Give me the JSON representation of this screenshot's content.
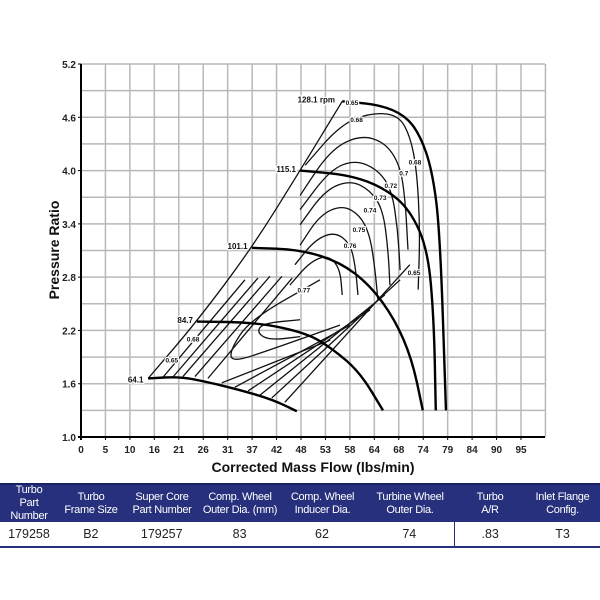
{
  "chart_data": {
    "type": "line",
    "title": "",
    "xlabel": "Corrected Mass Flow (lbs/min)",
    "ylabel": "Pressure Ratio",
    "xlim": [
      0,
      100
    ],
    "ylim": [
      1.0,
      5.2
    ],
    "grid": true,
    "x_tick_labels": [
      "0",
      "5",
      "10",
      "16",
      "21",
      "26",
      "31",
      "37",
      "42",
      "48",
      "53",
      "58",
      "64",
      "68",
      "74",
      "79",
      "84",
      "90",
      "95"
    ],
    "y_tick_labels": [
      "1.0",
      "1.6",
      "2.2",
      "2.8",
      "3.4",
      "4.0",
      "4.6",
      "5.2"
    ],
    "speed_lines": [
      {
        "name": "64.1",
        "points": [
          [
            14.5,
            1.66
          ],
          [
            21.4,
            1.68
          ],
          [
            27.2,
            1.62
          ],
          [
            34.3,
            1.53
          ],
          [
            41.4,
            1.42
          ],
          [
            46.6,
            1.29
          ]
        ]
      },
      {
        "name": "84.7",
        "points": [
          [
            25.0,
            2.3
          ],
          [
            38.0,
            2.29
          ],
          [
            48.8,
            2.17
          ],
          [
            54.4,
            1.99
          ],
          [
            60.2,
            1.73
          ],
          [
            65.2,
            1.3
          ]
        ]
      },
      {
        "name": "101.1",
        "points": [
          [
            36.9,
            3.13
          ],
          [
            47.3,
            3.11
          ],
          [
            55.9,
            2.97
          ],
          [
            62.4,
            2.71
          ],
          [
            67.8,
            2.32
          ],
          [
            71.5,
            1.87
          ],
          [
            73.8,
            1.3
          ]
        ]
      },
      {
        "name": "115.1",
        "points": [
          [
            47.3,
            4.0
          ],
          [
            58.1,
            3.95
          ],
          [
            65.6,
            3.8
          ],
          [
            71.0,
            3.56
          ],
          [
            74.9,
            3.11
          ],
          [
            76.2,
            2.32
          ],
          [
            76.6,
            1.3
          ]
        ]
      },
      {
        "name": "128.1 rpm",
        "points": [
          [
            56.4,
            4.78
          ],
          [
            64.6,
            4.74
          ],
          [
            70.0,
            4.62
          ],
          [
            73.2,
            4.4
          ],
          [
            75.8,
            4.01
          ],
          [
            77.5,
            3.33
          ],
          [
            78.8,
            1.3
          ]
        ]
      }
    ],
    "surge_line": [
      [
        14.5,
        1.66
      ],
      [
        25.0,
        2.3
      ],
      [
        36.9,
        3.13
      ],
      [
        47.3,
        4.0
      ],
      [
        56.4,
        4.78
      ]
    ],
    "efficiency_contours": [
      {
        "value": "0.68",
        "points": [
          [
            48.4,
            4.06
          ],
          [
            55.9,
            4.51
          ],
          [
            62.4,
            4.65
          ],
          [
            68.4,
            4.63
          ],
          [
            71.0,
            4.4
          ],
          [
            72.5,
            4.01
          ],
          [
            73.2,
            3.33
          ],
          [
            72.8,
            2.66
          ]
        ]
      },
      {
        "value": "0.7",
        "points": [
          [
            47.3,
            3.72
          ],
          [
            53.8,
            4.23
          ],
          [
            60.2,
            4.4
          ],
          [
            65.6,
            4.32
          ],
          [
            68.9,
            4.06
          ],
          [
            70.0,
            3.67
          ],
          [
            70.6,
            3.11
          ]
        ]
      },
      {
        "value": "0.72",
        "points": [
          [
            47.3,
            3.56
          ],
          [
            53.8,
            4.01
          ],
          [
            59.2,
            4.12
          ],
          [
            64.1,
            4.01
          ],
          [
            67.1,
            3.78
          ],
          [
            68.4,
            3.33
          ],
          [
            68.9,
            2.88
          ]
        ]
      },
      {
        "value": "0.73",
        "points": [
          [
            47.3,
            3.39
          ],
          [
            52.7,
            3.78
          ],
          [
            58.1,
            3.89
          ],
          [
            62.4,
            3.78
          ],
          [
            65.2,
            3.56
          ],
          [
            66.3,
            3.11
          ],
          [
            66.7,
            2.71
          ]
        ]
      },
      {
        "value": "0.74",
        "points": [
          [
            47.3,
            3.16
          ],
          [
            51.6,
            3.5
          ],
          [
            56.4,
            3.61
          ],
          [
            60.2,
            3.5
          ],
          [
            62.4,
            3.27
          ],
          [
            63.5,
            2.88
          ],
          [
            64.1,
            2.54
          ]
        ]
      },
      {
        "value": "0.75",
        "points": [
          [
            46.2,
            2.94
          ],
          [
            50.5,
            3.22
          ],
          [
            54.8,
            3.31
          ],
          [
            58.1,
            3.18
          ],
          [
            59.2,
            2.94
          ],
          [
            59.8,
            2.6
          ]
        ]
      },
      {
        "value": "0.76",
        "points": [
          [
            45.1,
            2.71
          ],
          [
            49.4,
            2.97
          ],
          [
            53.3,
            3.05
          ],
          [
            55.9,
            2.9
          ],
          [
            56.4,
            2.6
          ]
        ]
      },
      {
        "value": "0.77",
        "points": [
          [
            47.3,
            2.32
          ],
          [
            39.1,
            2.28
          ],
          [
            38.0,
            2.17
          ],
          [
            40.8,
            2.09
          ],
          [
            47.3,
            2.13
          ]
        ]
      },
      {
        "value": "0.76",
        "points": [
          [
            51.6,
            2.77
          ],
          [
            36.5,
            2.32
          ],
          [
            32.2,
            1.98
          ],
          [
            32.6,
            1.84
          ],
          [
            40.8,
            1.98
          ],
          [
            55.9,
            2.26
          ]
        ]
      },
      {
        "value": "",
        "points": [
          [
            30.4,
            1.61
          ],
          [
            53.8,
            2.09
          ]
        ]
      },
      {
        "value": "",
        "points": [
          [
            33.2,
            1.56
          ],
          [
            58.1,
            2.26
          ]
        ]
      },
      {
        "value": "",
        "points": [
          [
            36.1,
            1.52
          ],
          [
            62.4,
            2.43
          ]
        ]
      },
      {
        "value": "",
        "points": [
          [
            38.6,
            1.47
          ],
          [
            65.6,
            2.6
          ]
        ]
      },
      {
        "value": "",
        "points": [
          [
            41.2,
            1.44
          ],
          [
            68.9,
            2.77
          ]
        ]
      },
      {
        "value": "",
        "points": [
          [
            44.0,
            1.39
          ],
          [
            71.0,
            2.94
          ]
        ]
      },
      {
        "value": "",
        "points": [
          [
            17.5,
            1.66
          ],
          [
            35.4,
            2.77
          ]
        ]
      },
      {
        "value": "",
        "points": [
          [
            19.6,
            1.66
          ],
          [
            38.2,
            2.79
          ]
        ]
      },
      {
        "value": "",
        "points": [
          [
            22.0,
            1.68
          ],
          [
            40.8,
            2.81
          ]
        ]
      },
      {
        "value": "",
        "points": [
          [
            24.6,
            1.68
          ],
          [
            43.4,
            2.81
          ]
        ]
      },
      {
        "value": "",
        "points": [
          [
            27.4,
            1.66
          ],
          [
            45.6,
            2.79
          ]
        ]
      }
    ],
    "annotations": [
      {
        "text": "128.1 rpm",
        "at": [
          50.8,
          4.8
        ],
        "bold": true
      },
      {
        "text": "115.1",
        "at": [
          44.3,
          4.02
        ],
        "bold": true
      },
      {
        "text": "101.1",
        "at": [
          33.8,
          3.15
        ],
        "bold": true
      },
      {
        "text": "84.7",
        "at": [
          22.5,
          2.32
        ],
        "bold": true
      },
      {
        "text": "64.1",
        "at": [
          11.8,
          1.65
        ],
        "bold": true
      },
      {
        "text": "0.65",
        "at": [
          58.5,
          4.77
        ]
      },
      {
        "text": "0.68",
        "at": [
          59.5,
          4.58
        ]
      },
      {
        "text": "0.68",
        "at": [
          72.1,
          4.1
        ]
      },
      {
        "text": "0.7",
        "at": [
          69.7,
          3.98
        ]
      },
      {
        "text": "0.72",
        "at": [
          66.9,
          3.84
        ]
      },
      {
        "text": "0.73",
        "at": [
          64.6,
          3.7
        ]
      },
      {
        "text": "0.74",
        "at": [
          62.4,
          3.56
        ]
      },
      {
        "text": "0.75",
        "at": [
          60.0,
          3.34
        ]
      },
      {
        "text": "0.76",
        "at": [
          58.1,
          3.16
        ]
      },
      {
        "text": "0.77",
        "at": [
          48.1,
          2.66
        ]
      },
      {
        "text": "0.65",
        "at": [
          71.9,
          2.86
        ]
      },
      {
        "text": "0.68",
        "at": [
          24.2,
          2.11
        ]
      },
      {
        "text": "0.65",
        "at": [
          19.6,
          1.87
        ]
      }
    ]
  },
  "table": {
    "headers": [
      [
        "Turbo",
        "Part Number"
      ],
      [
        "Turbo",
        "Frame Size"
      ],
      [
        "Super Core",
        "Part Number"
      ],
      [
        "Comp. Wheel",
        "Outer Dia. (mm)"
      ],
      [
        "Comp. Wheel",
        "Inducer Dia."
      ],
      [
        "Turbine Wheel",
        "Outer Dia."
      ],
      [
        "Turbo",
        "A/R"
      ],
      [
        "Inlet Flange",
        "Config."
      ]
    ],
    "row": [
      "179258",
      "B2",
      "179257",
      "83",
      "62",
      "74",
      ".83",
      "T3"
    ]
  }
}
